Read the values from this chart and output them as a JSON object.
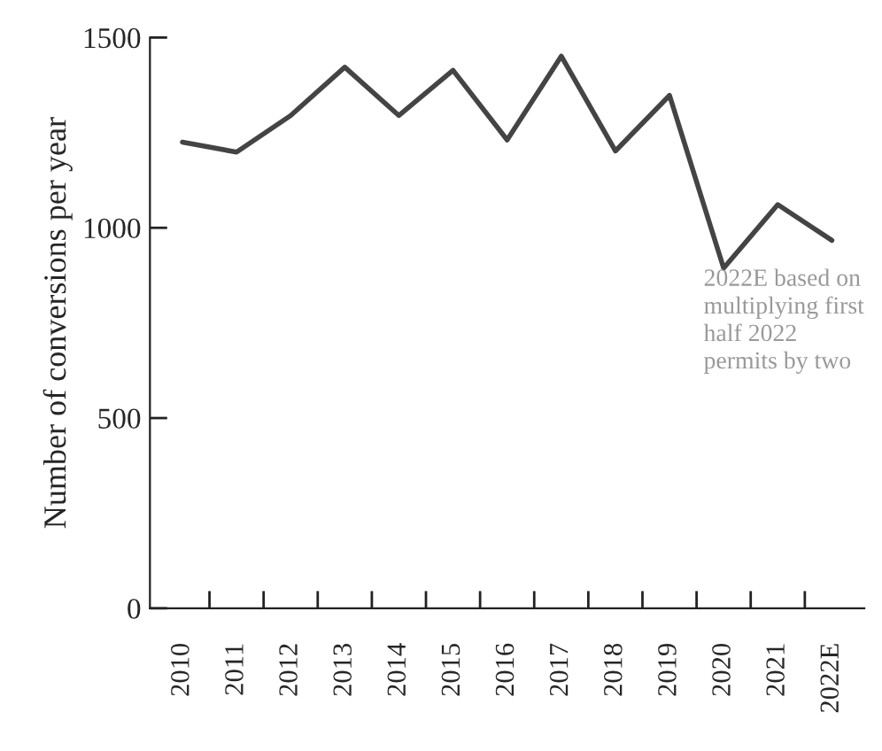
{
  "chart_data": {
    "type": "line",
    "ylabel": "Number of conversions per year",
    "categories": [
      "2010",
      "2011",
      "2012",
      "2013",
      "2014",
      "2015",
      "2016",
      "2017",
      "2018",
      "2019",
      "2020",
      "2021",
      "2022E"
    ],
    "series": [
      {
        "color": "#444444",
        "values": [
          1225,
          1199,
          1295,
          1422,
          1295,
          1414,
          1231,
          1451,
          1202,
          1348,
          894,
          1061,
          967
        ]
      }
    ],
    "ylim": [
      0,
      1500
    ],
    "yticks": [
      0,
      500,
      1000,
      1500
    ],
    "grid": false,
    "legend": false,
    "marker": "none",
    "line_style": "solid",
    "annotations": [
      "2022E based on\nmultiplying first\nhalf 2022\npermits by two"
    ]
  }
}
